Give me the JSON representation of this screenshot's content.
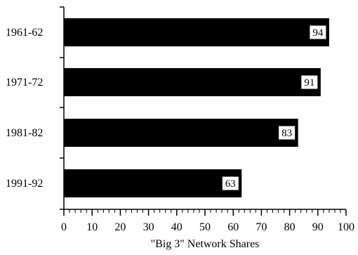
{
  "chart_data": {
    "type": "bar",
    "orientation": "horizontal",
    "categories": [
      "1961-62",
      "1971-72",
      "1981-82",
      "1991-92"
    ],
    "values": [
      94,
      91,
      83,
      63
    ],
    "data_labels": [
      "94",
      "91",
      "83",
      "63"
    ],
    "title": "",
    "xlabel": "\"Big 3\" Network Shares",
    "ylabel": "",
    "xlim": [
      0,
      100
    ],
    "x_ticks": [
      0,
      10,
      20,
      30,
      40,
      50,
      60,
      70,
      80,
      90,
      100
    ],
    "x_tick_labels": [
      "0",
      "10",
      "20",
      "30",
      "40",
      "50",
      "60",
      "70",
      "80",
      "90",
      "100"
    ],
    "grid": false,
    "legend": "none",
    "bar_color": "#000000",
    "label_box_color": "#ffffff"
  }
}
